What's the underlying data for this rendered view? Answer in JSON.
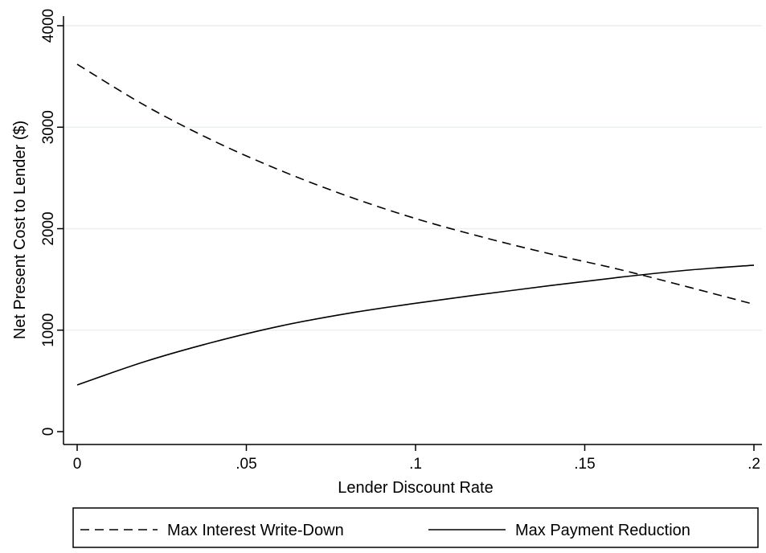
{
  "chart_data": {
    "type": "line",
    "title": "",
    "xlabel": "Lender Discount Rate",
    "ylabel": "Net Present Cost to Lender ($)",
    "xlim": [
      0,
      0.2
    ],
    "ylim": [
      0,
      4000
    ],
    "x_ticks": [
      {
        "value": 0,
        "label": "0"
      },
      {
        "value": 0.05,
        "label": ".05"
      },
      {
        "value": 0.1,
        "label": ".1"
      },
      {
        "value": 0.15,
        "label": ".15"
      },
      {
        "value": 0.2,
        "label": ".2"
      }
    ],
    "y_ticks": [
      {
        "value": 0,
        "label": "0"
      },
      {
        "value": 1000,
        "label": "1000"
      },
      {
        "value": 2000,
        "label": "2000"
      },
      {
        "value": 3000,
        "label": "3000"
      },
      {
        "value": 4000,
        "label": "4000"
      }
    ],
    "grid": "horizontal",
    "legend_position": "bottom",
    "x": [
      0,
      0.02,
      0.04,
      0.06,
      0.08,
      0.1,
      0.12,
      0.14,
      0.16,
      0.18,
      0.2
    ],
    "series": [
      {
        "name": "Max Interest Write-Down",
        "line_style": "dashed",
        "color": "#000000",
        "values": [
          3620,
          3215,
          2870,
          2575,
          2320,
          2100,
          1915,
          1750,
          1600,
          1430,
          1255
        ]
      },
      {
        "name": "Max Payment Reduction",
        "line_style": "solid",
        "color": "#000000",
        "values": [
          460,
          690,
          880,
          1040,
          1165,
          1265,
          1355,
          1440,
          1520,
          1590,
          1640
        ]
      }
    ]
  }
}
